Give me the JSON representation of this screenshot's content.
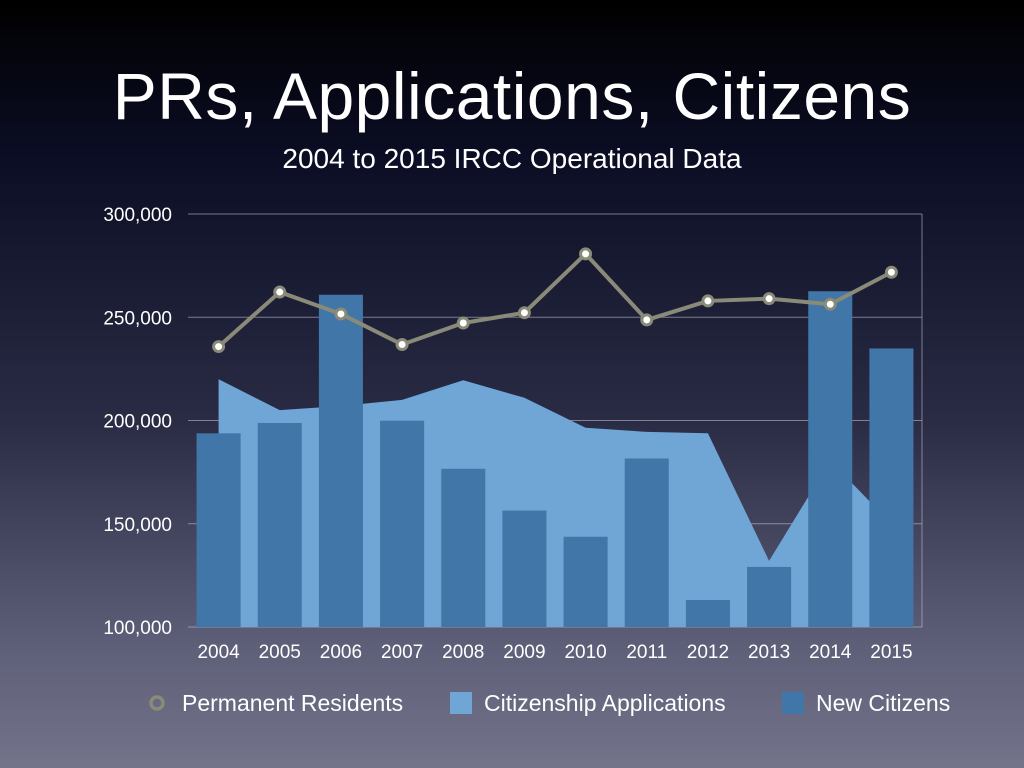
{
  "slide": {
    "title": "PRs, Applications, Citizens",
    "subtitle": "2004 to 2015 IRCC Operational Data"
  },
  "chart_data": {
    "type": "bar",
    "categories": [
      "2004",
      "2005",
      "2006",
      "2007",
      "2008",
      "2009",
      "2010",
      "2011",
      "2012",
      "2013",
      "2014",
      "2015"
    ],
    "ylim": [
      100000,
      300000
    ],
    "yticks": [
      100000,
      150000,
      200000,
      250000,
      300000
    ],
    "ytick_labels": [
      "100,000",
      "150,000",
      "200,000",
      "250,000",
      "300,000"
    ],
    "grid": true,
    "legend_position": "bottom",
    "series": [
      {
        "name": "Permanent Residents",
        "type": "line",
        "color": "#8a8a78",
        "values": [
          235800,
          262200,
          251600,
          236800,
          247200,
          252200,
          280700,
          248700,
          257900,
          259000,
          256300,
          271800
        ]
      },
      {
        "name": "Citizenship Applications",
        "type": "area",
        "color": "#6fa6d6",
        "values": [
          220000,
          205000,
          207000,
          210000,
          219500,
          211000,
          196500,
          194500,
          193800,
          132000,
          180500,
          150000
        ]
      },
      {
        "name": "New Citizens",
        "type": "bar",
        "color": "#4176a8",
        "values": [
          193800,
          198800,
          260900,
          199900,
          176600,
          156400,
          143700,
          181600,
          113100,
          129100,
          262600,
          234900
        ]
      }
    ]
  }
}
